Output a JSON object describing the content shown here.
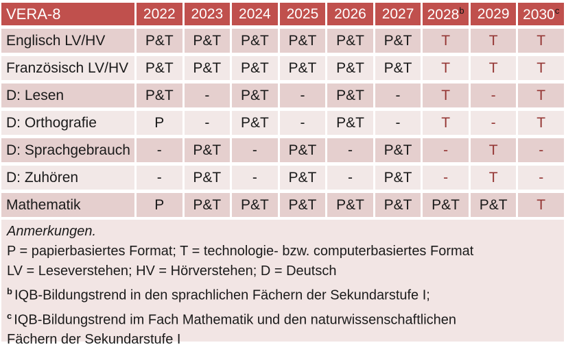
{
  "colors": {
    "page_bg": "#FFFFFF",
    "header_bg": "#C0504D",
    "header_text": "#FFFFFF",
    "row_odd_bg": "#E5CFCE",
    "row_even_bg": "#F2E8E7",
    "notes_bg": "#F2E5E4",
    "cell_text": "#1A1A1A",
    "accent_text": "#943634"
  },
  "table": {
    "title": "VERA-8",
    "columns": [
      {
        "label": "2022",
        "sup": ""
      },
      {
        "label": "2023",
        "sup": ""
      },
      {
        "label": "2024",
        "sup": ""
      },
      {
        "label": "2025",
        "sup": ""
      },
      {
        "label": "2026",
        "sup": ""
      },
      {
        "label": "2027",
        "sup": ""
      },
      {
        "label": "2028",
        "sup": "b"
      },
      {
        "label": "2029",
        "sup": ""
      },
      {
        "label": "2030",
        "sup": "c"
      }
    ],
    "rows": [
      {
        "label": "Englisch LV/HV",
        "cells": [
          {
            "text": "P&T",
            "red": false
          },
          {
            "text": "P&T",
            "red": false
          },
          {
            "text": "P&T",
            "red": false
          },
          {
            "text": "P&T",
            "red": false
          },
          {
            "text": "P&T",
            "red": false
          },
          {
            "text": "P&T",
            "red": false
          },
          {
            "text": "T",
            "red": true
          },
          {
            "text": "T",
            "red": true
          },
          {
            "text": "T",
            "red": true
          }
        ]
      },
      {
        "label": "Französisch LV/HV",
        "cells": [
          {
            "text": "P&T",
            "red": false
          },
          {
            "text": "P&T",
            "red": false
          },
          {
            "text": "P&T",
            "red": false
          },
          {
            "text": "P&T",
            "red": false
          },
          {
            "text": "P&T",
            "red": false
          },
          {
            "text": "P&T",
            "red": false
          },
          {
            "text": "T",
            "red": true
          },
          {
            "text": "T",
            "red": true
          },
          {
            "text": "T",
            "red": true
          }
        ]
      },
      {
        "label": "D: Lesen",
        "cells": [
          {
            "text": "P&T",
            "red": false
          },
          {
            "text": "-",
            "red": false
          },
          {
            "text": "P&T",
            "red": false
          },
          {
            "text": "-",
            "red": false
          },
          {
            "text": "P&T",
            "red": false
          },
          {
            "text": "-",
            "red": false
          },
          {
            "text": "T",
            "red": true
          },
          {
            "text": "-",
            "red": true
          },
          {
            "text": "T",
            "red": true
          }
        ]
      },
      {
        "label": "D: Orthografie",
        "cells": [
          {
            "text": "P",
            "red": false
          },
          {
            "text": "-",
            "red": false
          },
          {
            "text": "P&T",
            "red": false
          },
          {
            "text": "-",
            "red": false
          },
          {
            "text": "P&T",
            "red": false
          },
          {
            "text": "-",
            "red": false
          },
          {
            "text": "T",
            "red": true
          },
          {
            "text": "-",
            "red": true
          },
          {
            "text": "T",
            "red": true
          }
        ]
      },
      {
        "label": "D: Sprachgebrauch",
        "cells": [
          {
            "text": "-",
            "red": false
          },
          {
            "text": "P&T",
            "red": false
          },
          {
            "text": "-",
            "red": false
          },
          {
            "text": "P&T",
            "red": false
          },
          {
            "text": "-",
            "red": false
          },
          {
            "text": "P&T",
            "red": false
          },
          {
            "text": "-",
            "red": true
          },
          {
            "text": "T",
            "red": true
          },
          {
            "text": "-",
            "red": true
          }
        ]
      },
      {
        "label": "D: Zuhören",
        "cells": [
          {
            "text": "-",
            "red": false
          },
          {
            "text": "P&T",
            "red": false
          },
          {
            "text": "-",
            "red": false
          },
          {
            "text": "P&T",
            "red": false
          },
          {
            "text": "-",
            "red": false
          },
          {
            "text": "P&T",
            "red": false
          },
          {
            "text": "-",
            "red": true
          },
          {
            "text": "T",
            "red": true
          },
          {
            "text": "-",
            "red": true
          }
        ]
      },
      {
        "label": "Mathematik",
        "cells": [
          {
            "text": "P",
            "red": false
          },
          {
            "text": "P&T",
            "red": false
          },
          {
            "text": "P&T",
            "red": false
          },
          {
            "text": "P&T",
            "red": false
          },
          {
            "text": "P&T",
            "red": false
          },
          {
            "text": "P&T",
            "red": false
          },
          {
            "text": "P&T",
            "red": false
          },
          {
            "text": "P&T",
            "red": false
          },
          {
            "text": "T",
            "red": true
          }
        ]
      }
    ]
  },
  "notes": {
    "heading": "Anmerkungen.",
    "lines": [
      {
        "sup": "",
        "text": "P = papierbasiertes Format; T = technologie- bzw. computerbasiertes Format"
      },
      {
        "sup": "",
        "text": "LV = Leseverstehen; HV = Hörverstehen; D = Deutsch"
      },
      {
        "sup": "b",
        "text": "IQB-Bildungstrend in den sprachlichen Fächern der Sekundarstufe I;"
      },
      {
        "sup": "c",
        "text": "IQB-Bildungstrend im Fach Mathematik und den naturwissenschaftlichen\nFächern der Sekundarstufe I"
      }
    ]
  }
}
